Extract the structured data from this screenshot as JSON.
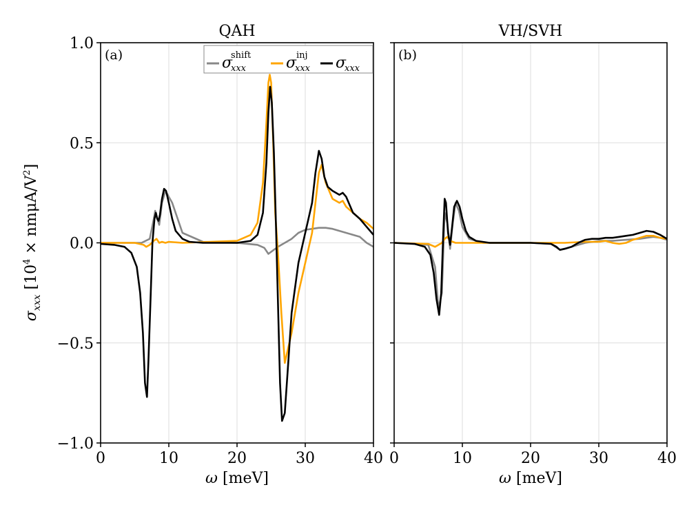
{
  "chart_data": [
    {
      "panel_label": "(a)",
      "title": "QAH",
      "type": "line",
      "xlabel": "ω [meV]",
      "ylabel": "σxxx [10⁴ × nmμA/V²]",
      "xlim": [
        0,
        40
      ],
      "ylim": [
        -1.0,
        1.0
      ],
      "xticks": [
        0,
        10,
        20,
        30,
        40
      ],
      "xtick_labels": [
        "0",
        "10",
        "20",
        "30",
        "40"
      ],
      "yticks": [
        -1.0,
        -0.5,
        0.0,
        0.5,
        1.0
      ],
      "ytick_labels": [
        "−1.0",
        "−0.5",
        "0.0",
        "0.5",
        "1.0"
      ],
      "grid": true,
      "legend_position": "top-right",
      "series": [
        {
          "name": "σxxx shift",
          "color": "#888888",
          "x": [
            0,
            6,
            7.2,
            7.8,
            8.0,
            8.3,
            8.6,
            9.0,
            9.5,
            10.5,
            12,
            15,
            20,
            23,
            24,
            24.6,
            25.2,
            26,
            27,
            28,
            29,
            30,
            31,
            32,
            33,
            34,
            35,
            36,
            37,
            38,
            39,
            40
          ],
          "y": [
            0,
            0,
            0.02,
            0.12,
            0.16,
            0.12,
            0.09,
            0.2,
            0.26,
            0.2,
            0.05,
            0.005,
            0,
            -0.01,
            -0.025,
            -0.055,
            -0.04,
            -0.02,
            0.0,
            0.02,
            0.05,
            0.065,
            0.07,
            0.075,
            0.075,
            0.07,
            0.06,
            0.05,
            0.04,
            0.03,
            0.0,
            -0.02
          ]
        },
        {
          "name": "σxxx inj",
          "color": "#FFA500",
          "x": [
            0,
            5,
            6.3,
            6.7,
            7.2,
            7.8,
            8.2,
            8.6,
            9,
            9.5,
            10,
            12,
            20,
            22,
            23,
            23.8,
            24.3,
            24.6,
            24.8,
            25.0,
            25.3,
            25.6,
            26,
            26.5,
            27,
            28,
            29,
            30,
            31,
            31.5,
            32,
            32.4,
            33,
            34,
            35,
            35.5,
            36,
            37,
            38,
            39,
            40
          ],
          "y": [
            0,
            0,
            -0.01,
            -0.02,
            -0.01,
            0.01,
            0.02,
            0.0,
            0.005,
            0.0,
            0.005,
            0,
            0.01,
            0.04,
            0.1,
            0.3,
            0.6,
            0.8,
            0.84,
            0.8,
            0.5,
            0.15,
            -0.05,
            -0.35,
            -0.6,
            -0.45,
            -0.25,
            -0.1,
            0.05,
            0.2,
            0.35,
            0.39,
            0.3,
            0.22,
            0.2,
            0.21,
            0.18,
            0.15,
            0.12,
            0.1,
            0.07
          ]
        },
        {
          "name": "σxxx",
          "color": "#000000",
          "x": [
            0,
            2,
            3.5,
            4.5,
            5.3,
            5.8,
            6.2,
            6.5,
            6.8,
            7.0,
            7.3,
            7.6,
            7.9,
            8.1,
            8.3,
            8.5,
            8.7,
            9.0,
            9.3,
            9.6,
            10,
            10.5,
            11,
            12,
            13,
            15,
            20,
            22,
            23,
            23.8,
            24.3,
            24.6,
            24.85,
            25.1,
            25.4,
            25.7,
            26.0,
            26.3,
            26.6,
            27,
            27.5,
            28,
            29,
            30,
            31,
            31.5,
            32,
            32.4,
            32.8,
            33.3,
            34,
            35,
            35.5,
            36,
            36.5,
            37,
            38,
            39,
            40
          ],
          "y": [
            -0.005,
            -0.01,
            -0.02,
            -0.05,
            -0.12,
            -0.25,
            -0.45,
            -0.7,
            -0.77,
            -0.6,
            -0.3,
            0.0,
            0.12,
            0.15,
            0.12,
            0.11,
            0.14,
            0.22,
            0.27,
            0.26,
            0.2,
            0.12,
            0.06,
            0.02,
            0.005,
            0.0,
            0.0,
            0.01,
            0.04,
            0.15,
            0.4,
            0.65,
            0.78,
            0.7,
            0.45,
            0.1,
            -0.3,
            -0.7,
            -0.89,
            -0.85,
            -0.6,
            -0.35,
            -0.1,
            0.05,
            0.2,
            0.35,
            0.46,
            0.42,
            0.33,
            0.28,
            0.26,
            0.24,
            0.25,
            0.23,
            0.19,
            0.15,
            0.12,
            0.08,
            0.04
          ]
        }
      ]
    },
    {
      "panel_label": "(b)",
      "title": "VH/SVH",
      "type": "line",
      "xlabel": "ω [meV]",
      "xlim": [
        0,
        40
      ],
      "ylim": [
        -1.0,
        1.0
      ],
      "xticks": [
        0,
        10,
        20,
        30,
        40
      ],
      "xtick_labels": [
        "0",
        "10",
        "20",
        "30",
        "40"
      ],
      "yticks": [
        -1.0,
        -0.5,
        0.0,
        0.5,
        1.0
      ],
      "grid": true,
      "series": [
        {
          "name": "σxxx shift",
          "color": "#888888",
          "x": [
            0,
            5,
            6,
            6.5,
            7.0,
            7.4,
            7.8,
            8.2,
            8.6,
            9.0,
            9.5,
            10,
            11,
            13,
            20,
            23,
            24.3,
            26,
            28,
            30,
            32,
            34,
            36,
            37,
            38,
            39,
            40
          ],
          "y": [
            0,
            -0.01,
            -0.12,
            -0.33,
            -0.25,
            0.15,
            0.1,
            -0.03,
            0.1,
            0.2,
            0.16,
            0.08,
            0.02,
            0.0,
            0.0,
            -0.005,
            -0.035,
            -0.02,
            0.0,
            0.01,
            0.01,
            0.015,
            0.02,
            0.025,
            0.03,
            0.025,
            0.015
          ]
        },
        {
          "name": "σxxx inj",
          "color": "#FFA500",
          "x": [
            0,
            5,
            6,
            6.5,
            7.0,
            7.4,
            7.8,
            8.2,
            8.6,
            9.0,
            10,
            12,
            20,
            25,
            28,
            30,
            31,
            32,
            33,
            34,
            35,
            36,
            37,
            38,
            39,
            40
          ],
          "y": [
            0,
            -0.005,
            -0.02,
            -0.01,
            0.0,
            0.02,
            0.03,
            0.01,
            0.005,
            0.0,
            0.0,
            0.0,
            0.0,
            0.0,
            0.005,
            0.005,
            0.01,
            0.0,
            -0.005,
            0.0,
            0.015,
            0.025,
            0.035,
            0.035,
            0.025,
            0.02
          ]
        },
        {
          "name": "σxxx",
          "color": "#000000",
          "x": [
            0,
            3,
            4.5,
            5.3,
            5.8,
            6.2,
            6.6,
            6.9,
            7.2,
            7.4,
            7.6,
            7.9,
            8.2,
            8.5,
            8.8,
            9.2,
            9.6,
            10,
            10.5,
            11,
            12,
            14,
            20,
            23,
            23.8,
            24.3,
            25,
            26,
            27,
            28,
            29,
            30,
            31,
            32,
            33,
            34,
            35,
            36,
            37,
            38,
            39,
            40
          ],
          "y": [
            0,
            -0.005,
            -0.02,
            -0.06,
            -0.15,
            -0.28,
            -0.36,
            -0.25,
            0.05,
            0.22,
            0.2,
            0.05,
            -0.01,
            0.08,
            0.18,
            0.21,
            0.18,
            0.12,
            0.06,
            0.03,
            0.01,
            0.0,
            0.0,
            -0.005,
            -0.02,
            -0.035,
            -0.03,
            -0.02,
            0.0,
            0.015,
            0.02,
            0.02,
            0.025,
            0.025,
            0.03,
            0.035,
            0.04,
            0.05,
            0.06,
            0.055,
            0.04,
            0.02
          ]
        }
      ]
    }
  ],
  "legend": {
    "labels": [
      {
        "base": "σ",
        "sub": "xxx",
        "sup": "shift"
      },
      {
        "base": "σ",
        "sub": "xxx",
        "sup": "inj"
      },
      {
        "base": "σ",
        "sub": "xxx",
        "sup": ""
      }
    ]
  },
  "ylabel_parts": {
    "sigma": "σ",
    "sub": "xxx",
    "open": " [10",
    "exp1": "4",
    "mid": " × nmμA/V",
    "exp2": "2",
    "close": "]"
  }
}
